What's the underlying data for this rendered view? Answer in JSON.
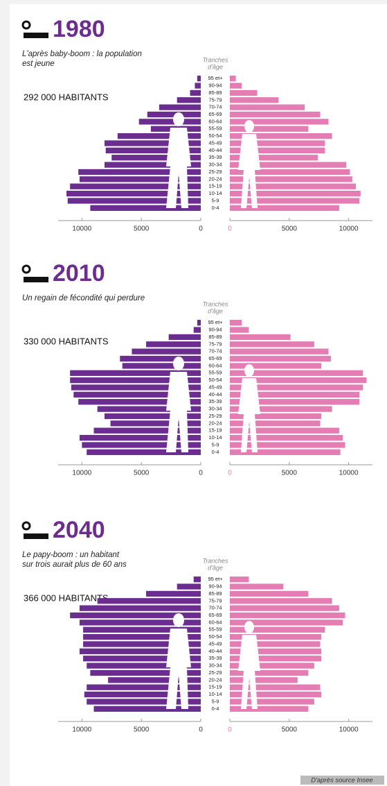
{
  "chart_data": [
    {
      "type": "population-pyramid",
      "title": "1980",
      "subtitle": [
        "L'après baby-boom : la population",
        "est jeune"
      ],
      "population": "292 000 HABITANTS",
      "axis_label": [
        "Tranches",
        "d'âge"
      ],
      "categories": [
        "95 et+",
        "90-94",
        "85-89",
        "75-79",
        "70-74",
        "65-69",
        "60-64",
        "55-59",
        "50-54",
        "45-49",
        "40-44",
        "35-39",
        "30-34",
        "25-29",
        "20-24",
        "15-19",
        "10-14",
        "5-9",
        "0-4"
      ],
      "series": [
        {
          "color": "#6b2d8f",
          "side": "left",
          "values": [
            300,
            500,
            900,
            2000,
            3500,
            4500,
            5200,
            4200,
            7000,
            8100,
            8000,
            7500,
            8100,
            10300,
            10200,
            11000,
            11300,
            11200,
            9300
          ]
        },
        {
          "color": "#e47db3",
          "side": "right",
          "values": [
            500,
            1000,
            2300,
            4100,
            6300,
            7600,
            8300,
            6600,
            8600,
            8000,
            8000,
            7400,
            9800,
            10100,
            10300,
            10600,
            11000,
            10900,
            9200
          ]
        }
      ],
      "xlim": [
        0,
        12000
      ],
      "xticks": [
        0,
        5000,
        10000
      ]
    },
    {
      "type": "population-pyramid",
      "title": "2010",
      "subtitle": [
        "Un regain de fécondité qui perdure"
      ],
      "population": "330 000 HABITANTS",
      "axis_label": [
        "Tranches",
        "d'âge"
      ],
      "categories": [
        "95 et+",
        "90-94",
        "85-89",
        "75-79",
        "70-74",
        "65-69",
        "60-64",
        "55-59",
        "50-54",
        "45-49",
        "40-44",
        "35-39",
        "30-34",
        "25-29",
        "20-24",
        "15-19",
        "10-14",
        "5-9",
        "0-4"
      ],
      "series": [
        {
          "color": "#6b2d8f",
          "side": "left",
          "values": [
            300,
            600,
            2700,
            4600,
            5800,
            6800,
            6600,
            11000,
            11000,
            10900,
            10700,
            10300,
            8700,
            8100,
            7600,
            9000,
            10200,
            10000,
            9600
          ]
        },
        {
          "color": "#e47db3",
          "side": "right",
          "values": [
            1000,
            1600,
            5100,
            7100,
            8300,
            8500,
            7700,
            11200,
            11500,
            11200,
            10900,
            10900,
            8600,
            7700,
            7600,
            9200,
            9500,
            9700,
            9300
          ]
        }
      ],
      "xlim": [
        0,
        12000
      ],
      "xticks": [
        0,
        5000,
        10000
      ]
    },
    {
      "type": "population-pyramid",
      "title": "2040",
      "subtitle": [
        "Le papy-boom : un habitant",
        "sur trois aurait plus de 60 ans"
      ],
      "population": "366 000 HABITANTS",
      "axis_label": [
        "Tranches",
        "d'âge"
      ],
      "categories": [
        "95 et+",
        "90-94",
        "85-89",
        "75-79",
        "70-74",
        "65-69",
        "60-64",
        "55-59",
        "50-54",
        "45-49",
        "40-44",
        "35-39",
        "30-34",
        "25-29",
        "20-24",
        "15-19",
        "10-14",
        "5-9",
        "0-4"
      ],
      "series": [
        {
          "color": "#6b2d8f",
          "side": "left",
          "values": [
            600,
            2000,
            4600,
            8700,
            10200,
            11000,
            10200,
            9900,
            9900,
            9900,
            10200,
            9900,
            9600,
            9300,
            7800,
            9600,
            9800,
            9600,
            9000
          ]
        },
        {
          "color": "#e47db3",
          "side": "right",
          "values": [
            1600,
            4500,
            6600,
            8600,
            9200,
            9700,
            9500,
            8000,
            7700,
            7600,
            7700,
            7700,
            7100,
            6600,
            5700,
            7600,
            7700,
            7100,
            6600
          ]
        }
      ],
      "xlim": [
        0,
        12000
      ],
      "xticks": [
        0,
        5000,
        10000
      ]
    }
  ],
  "source": "D'après source Insee"
}
